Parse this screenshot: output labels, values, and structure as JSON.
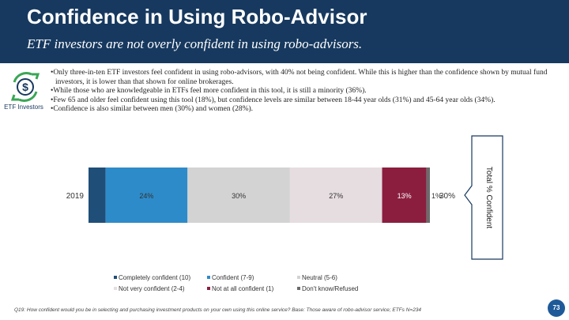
{
  "header": {
    "title": "Confidence in Using Robo-Advisor",
    "subtitle": "ETF investors are not overly confident in using robo-advisors."
  },
  "segment_icon": {
    "name": "dollar-cycle-icon",
    "label": "ETF Investors"
  },
  "bullets": [
    "•Only three-in-ten ETF investors feel confident in using robo-advisors, with 40% not being confident.  While this is higher than the confidence shown by mutual fund investors, it is lower than that shown for online brokerages.",
    "•While those who are knowledgeable in ETFs feel more confident in this tool, it is still a minority (36%).",
    "•Few 65 and older feel confident using this tool (18%), but confidence levels are similar between 18-44 year olds (31%) and 45-64 year olds (34%).",
    "•Confidence is also similar between men (30%) and women (28%)."
  ],
  "chart_data": {
    "type": "bar",
    "orientation": "horizontal",
    "stacked": true,
    "categories": [
      "2019"
    ],
    "series": [
      {
        "name": "Completely confident (10)",
        "values": [
          5
        ],
        "label": "5%",
        "color": "#1f4e79"
      },
      {
        "name": "Confident (7-9)",
        "values": [
          24
        ],
        "label": "24%",
        "color": "#2e8bc9"
      },
      {
        "name": "Neutral (5-6)",
        "values": [
          30
        ],
        "label": "30%",
        "color": "#d3d3d3"
      },
      {
        "name": "Not very confident (2-4)",
        "values": [
          27
        ],
        "label": "27%",
        "color": "#e6dde0"
      },
      {
        "name": "Not at all confident (1)",
        "values": [
          13
        ],
        "label": "13%",
        "color": "#8b1e3f"
      },
      {
        "name": "Don't know/Refused",
        "values": [
          1
        ],
        "label": "1%",
        "color": "#6b6b6b"
      }
    ],
    "total_confident": {
      "label": "Total % Confident",
      "value": "30%"
    },
    "legend_position": "bottom",
    "grid": false
  },
  "footnote": "Q19: How confident would you be in selecting and purchasing investment products on your own using this online service? Base: Those aware of robo-advisor service; ETFs N=234",
  "page_number": "73"
}
